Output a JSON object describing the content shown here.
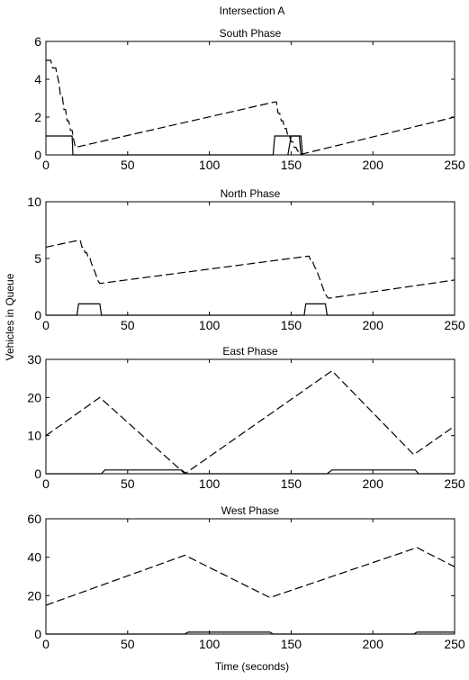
{
  "figure": {
    "title": "Intersection A",
    "ylabel": "Vehicles in Queue",
    "xlabel": "Time (seconds)"
  },
  "chart_data": [
    {
      "type": "line",
      "title": "South Phase",
      "xlim": [
        0,
        250
      ],
      "ylim": [
        0,
        6
      ],
      "xticks": [
        0,
        50,
        100,
        150,
        200,
        250
      ],
      "yticks": [
        0,
        2,
        4,
        6
      ],
      "series": [
        {
          "style": "dashed",
          "x": [
            0,
            3,
            4,
            6,
            7,
            8,
            9,
            10,
            11,
            12,
            13,
            14,
            15,
            16,
            17,
            18,
            140,
            141,
            142,
            143,
            144,
            145,
            146,
            147,
            148,
            149,
            150,
            151,
            152,
            153,
            154,
            155,
            156,
            157,
            250
          ],
          "y": [
            5.0,
            5.0,
            4.6,
            4.6,
            4.2,
            3.8,
            3.1,
            3.1,
            2.4,
            2.4,
            1.8,
            1.8,
            1.3,
            1.3,
            0.8,
            0.4,
            2.8,
            2.8,
            2.2,
            2.2,
            1.8,
            1.8,
            1.4,
            1.4,
            1.0,
            1.0,
            0.7,
            0.7,
            0.4,
            0.4,
            0.2,
            0.2,
            0.05,
            0.05,
            2.0
          ]
        },
        {
          "style": "solid",
          "x": [
            0,
            15,
            16,
            16.5,
            139,
            140,
            155,
            156
          ],
          "y": [
            1,
            1,
            1,
            0,
            0,
            1,
            1,
            0
          ]
        },
        {
          "style": "solid",
          "x": [
            148,
            150,
            156,
            157
          ],
          "y": [
            0,
            1,
            1,
            0
          ]
        }
      ]
    },
    {
      "type": "line",
      "title": "North Phase",
      "xlim": [
        0,
        250
      ],
      "ylim": [
        0,
        10
      ],
      "xticks": [
        0,
        50,
        100,
        150,
        200,
        250
      ],
      "yticks": [
        0,
        5,
        10
      ],
      "series": [
        {
          "style": "dashed",
          "x": [
            0,
            20,
            21,
            22,
            23,
            24,
            25,
            26,
            27,
            28,
            29,
            30,
            31,
            32,
            33,
            160,
            161,
            162,
            163,
            164,
            165,
            166,
            167,
            168,
            169,
            170,
            171,
            172,
            173,
            250
          ],
          "y": [
            6.0,
            6.6,
            6.6,
            6.0,
            6.0,
            5.5,
            5.5,
            5.0,
            5.0,
            4.5,
            4.2,
            3.8,
            3.4,
            3.0,
            2.8,
            5.2,
            5.2,
            4.8,
            4.8,
            4.4,
            4.1,
            3.8,
            3.4,
            3.0,
            2.6,
            2.2,
            1.9,
            1.6,
            1.5,
            3.1
          ]
        },
        {
          "style": "solid",
          "x": [
            0,
            19,
            20,
            33,
            34,
            158,
            159,
            171,
            172,
            250
          ],
          "y": [
            0,
            0,
            1,
            1,
            0,
            0,
            1,
            1,
            0,
            0
          ]
        }
      ]
    },
    {
      "type": "line",
      "title": "East Phase",
      "xlim": [
        0,
        250
      ],
      "ylim": [
        0,
        30
      ],
      "xticks": [
        0,
        50,
        100,
        150,
        200,
        250
      ],
      "yticks": [
        0,
        10,
        20,
        30
      ],
      "series": [
        {
          "style": "dashed",
          "x": [
            0,
            33,
            85,
            175,
            225,
            250
          ],
          "y": [
            10,
            20,
            0,
            27,
            5,
            12.5
          ]
        },
        {
          "style": "solid",
          "x": [
            0,
            34,
            36,
            83,
            86,
            172,
            175,
            226,
            228,
            250
          ],
          "y": [
            0,
            0,
            1,
            1,
            0,
            0,
            1,
            1,
            0,
            0
          ]
        }
      ]
    },
    {
      "type": "line",
      "title": "West Phase",
      "xlim": [
        0,
        250
      ],
      "ylim": [
        0,
        60
      ],
      "xticks": [
        0,
        50,
        100,
        150,
        200,
        250
      ],
      "yticks": [
        0,
        20,
        40,
        60
      ],
      "series": [
        {
          "style": "dashed",
          "x": [
            0,
            85,
            137,
            227,
            250
          ],
          "y": [
            15,
            41,
            19,
            45,
            35
          ]
        },
        {
          "style": "solid",
          "x": [
            0,
            85,
            87,
            137,
            139,
            225,
            227,
            250
          ],
          "y": [
            0,
            0,
            1,
            1,
            0,
            0,
            1,
            1
          ]
        }
      ]
    }
  ]
}
